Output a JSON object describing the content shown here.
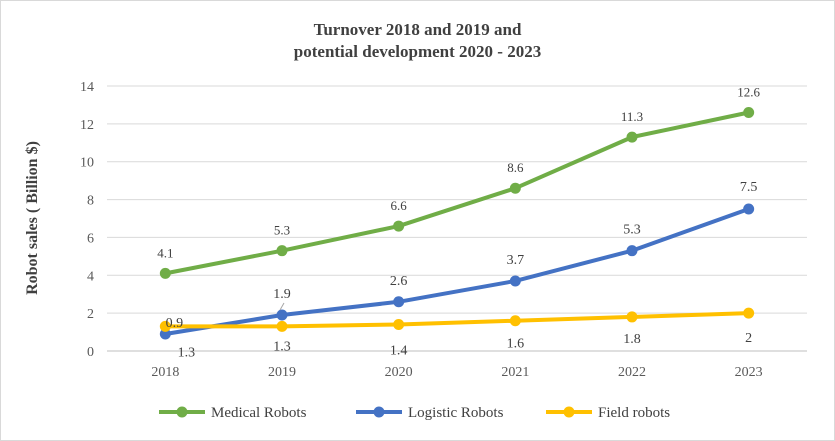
{
  "chart_data": {
    "type": "line",
    "title_line1": "Turnover 2018 and 2019 and",
    "title_line2": "potential development 2020 - 2023",
    "ylabel": "Robot sales ( Billion $)",
    "xlabel": "",
    "ylim": [
      0,
      14
    ],
    "yticks": [
      "0",
      "2",
      "4",
      "6",
      "8",
      "10",
      "12",
      "14"
    ],
    "categories": [
      "2018",
      "2019",
      "2020",
      "2021",
      "2022",
      "2023"
    ],
    "grid": true,
    "legend_position": "bottom",
    "series": [
      {
        "name": "Medical Robots",
        "color": "#70ad47",
        "values": [
          4.1,
          5.3,
          6.6,
          8.6,
          11.3,
          12.6
        ],
        "labels": [
          "4.1",
          "5.3",
          "6.6",
          "8.6",
          "11.3",
          "12.6"
        ]
      },
      {
        "name": "Logistic Robots",
        "color": "#4472c4",
        "values": [
          0.9,
          1.9,
          2.6,
          3.7,
          5.3,
          7.5
        ],
        "labels": [
          "0.9",
          "1.9",
          "2.6",
          "3.7",
          "5.3",
          "7.5"
        ]
      },
      {
        "name": "Field robots",
        "color": "#ffc000",
        "values": [
          1.3,
          1.3,
          1.4,
          1.6,
          1.8,
          2
        ],
        "labels": [
          "1.3",
          "1.3",
          "1.4",
          "1.6",
          "1.8",
          "2"
        ]
      }
    ]
  }
}
